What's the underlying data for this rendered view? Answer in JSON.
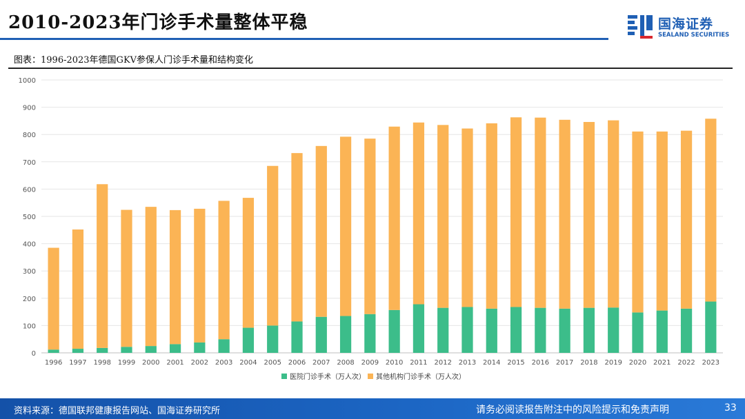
{
  "header": {
    "title": "2010-2023年门诊手术量整体平稳",
    "logo_cn": "国海证券",
    "logo_en": "SEALAND SECURITIES"
  },
  "figure": {
    "caption": "图表：1996-2023年德国GKV参保人门诊手术量和结构变化"
  },
  "colors": {
    "hospital": "#3cbd8a",
    "other": "#fbb455",
    "accent": "#1f5fb4",
    "grid": "#e6e6e6"
  },
  "chart_data": {
    "type": "bar",
    "stacked": true,
    "categories": [
      "1996",
      "1997",
      "1998",
      "1999",
      "2000",
      "2001",
      "2002",
      "2003",
      "2004",
      "2005",
      "2006",
      "2007",
      "2008",
      "2009",
      "2010",
      "2011",
      "2012",
      "2013",
      "2014",
      "2015",
      "2016",
      "2017",
      "2018",
      "2019",
      "2020",
      "2021",
      "2022",
      "2023"
    ],
    "series": [
      {
        "name": "医院门诊手术（万人次）",
        "values": [
          12,
          15,
          18,
          22,
          25,
          32,
          38,
          50,
          92,
          100,
          115,
          132,
          135,
          142,
          157,
          178,
          165,
          168,
          162,
          168,
          165,
          162,
          165,
          166,
          148,
          155,
          162,
          188
        ]
      },
      {
        "name": "其他机构门诊手术（万人次）",
        "values": [
          373,
          437,
          600,
          502,
          510,
          491,
          490,
          507,
          476,
          585,
          617,
          626,
          657,
          643,
          672,
          666,
          670,
          654,
          679,
          695,
          697,
          692,
          681,
          686,
          663,
          656,
          652,
          670
        ]
      }
    ],
    "totals": [
      385,
      452,
      618,
      524,
      535,
      523,
      528,
      557,
      568,
      685,
      732,
      758,
      792,
      785,
      829,
      844,
      835,
      822,
      841,
      863,
      862,
      854,
      846,
      852,
      811,
      811,
      814,
      858
    ],
    "yticks": [
      0,
      100,
      200,
      300,
      400,
      500,
      600,
      700,
      800,
      900,
      1000
    ],
    "ylim": [
      0,
      1000
    ],
    "legend_position": "bottom",
    "grid": true
  },
  "footer": {
    "source": "资料来源：德国联邦健康报告网站、国海证券研究所",
    "disclaimer": "请务必阅读报告附注中的风险提示和免责声明",
    "page": "33"
  }
}
